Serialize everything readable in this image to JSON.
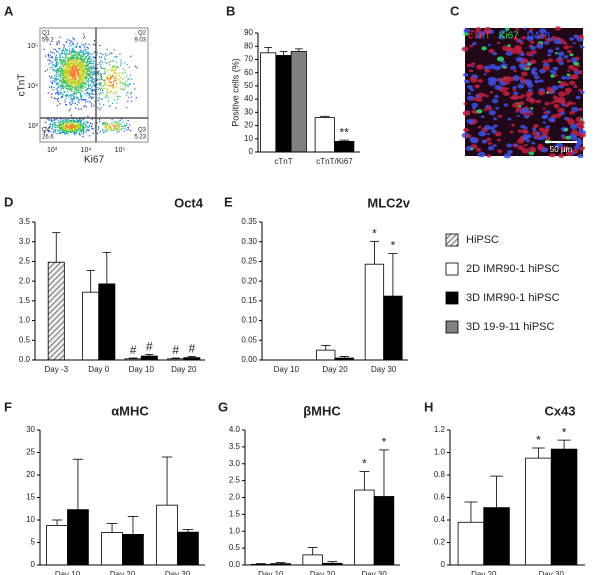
{
  "chart_data": [
    {
      "panel": "A",
      "type": "flow",
      "xlabel": "Ki67",
      "ylabel": "cTnT",
      "xtick_labels": [
        "10³",
        "10⁴",
        "10⁵"
      ],
      "ytick_labels": [
        "10⁵",
        "10⁴",
        "10³"
      ],
      "quadrants": [
        {
          "name": "Q1",
          "value": 59.2
        },
        {
          "name": "Q2",
          "value": 9.03
        },
        {
          "name": "Q3",
          "value": 5.23
        },
        {
          "name": "Q4",
          "value": 26.6
        }
      ]
    },
    {
      "panel": "B",
      "type": "bar",
      "ylabel": "Positive cells (%)",
      "categories": [
        "cTnT",
        "cTnT/Ki67"
      ],
      "ylim": [
        0,
        90
      ],
      "yticks": [
        0,
        10,
        20,
        30,
        40,
        50,
        60,
        70,
        80,
        90
      ],
      "series": [
        {
          "color": "#ffffff",
          "values": [
            75,
            26
          ],
          "errors": [
            4,
            1
          ],
          "annotations": [
            null,
            null
          ]
        },
        {
          "color": "#000000",
          "values": [
            73,
            8
          ],
          "errors": [
            3,
            1
          ],
          "annotations": [
            null,
            "**"
          ]
        },
        {
          "color": "#808080",
          "values": [
            76,
            null
          ],
          "errors": [
            2,
            null
          ],
          "annotations": [
            null,
            null
          ]
        }
      ]
    },
    {
      "panel": "C",
      "type": "image",
      "labels": [
        "cTnT",
        "Ki67",
        "DAPI"
      ],
      "label_colors": [
        "#ff3030",
        "#30e050",
        "#4060ff"
      ],
      "scale_bar": "50 µm"
    },
    {
      "panel": "D",
      "type": "bar",
      "title": "Oct4",
      "categories": [
        "Day -3",
        "Day 0",
        "Day 10",
        "Day 20"
      ],
      "ylim": [
        0,
        3.5
      ],
      "yticks": [
        {
          "value": 0,
          "label": "0.0"
        },
        0.5,
        {
          "value": 1,
          "label": "1.0"
        },
        1.5,
        {
          "value": 2,
          "label": "2.0"
        },
        2.5,
        {
          "value": 3,
          "label": "3.0"
        },
        3.5
      ],
      "series": [
        {
          "color": "#bbbbbb",
          "pattern": "hatch",
          "values": [
            2.48,
            null,
            null,
            null
          ],
          "errors": [
            0.75,
            null,
            null,
            null
          ],
          "annotations": [
            null,
            null,
            null,
            null
          ]
        },
        {
          "color": "#ffffff",
          "values": [
            null,
            1.72,
            0.03,
            0.03
          ],
          "errors": [
            null,
            0.55,
            0.02,
            0.02
          ],
          "annotations": [
            null,
            null,
            "#",
            "#"
          ]
        },
        {
          "color": "#000000",
          "values": [
            null,
            1.93,
            0.1,
            0.06
          ],
          "errors": [
            null,
            0.8,
            0.04,
            0.03
          ],
          "annotations": [
            null,
            null,
            "#",
            "#"
          ]
        }
      ]
    },
    {
      "panel": "E",
      "type": "bar",
      "title": "MLC2v",
      "categories": [
        "Day 10",
        "Day 20",
        "Day 30"
      ],
      "ylim": [
        0,
        0.35
      ],
      "yticks": [
        {
          "value": 0,
          "label": "0.00"
        },
        0.05,
        {
          "value": 0.1,
          "label": "0.10"
        },
        0.15,
        {
          "value": 0.2,
          "label": "0.20"
        },
        0.25,
        {
          "value": 0.3,
          "label": "0.30"
        },
        0.35
      ],
      "series": [
        {
          "color": "#ffffff",
          "values": [
            0,
            0.025,
            0.243
          ],
          "errors": [
            0,
            0.012,
            0.058
          ],
          "annotations": [
            null,
            null,
            "*"
          ]
        },
        {
          "color": "#000000",
          "values": [
            0,
            0.005,
            0.162
          ],
          "errors": [
            0,
            0.004,
            0.108
          ],
          "annotations": [
            null,
            null,
            "*"
          ]
        }
      ]
    },
    {
      "panel": "F",
      "type": "bar",
      "title": "αMHC",
      "categories": [
        "Day 10",
        "Day 20",
        "Day 30"
      ],
      "ylim": [
        0,
        30
      ],
      "yticks": [
        0,
        5,
        10,
        15,
        20,
        25,
        30
      ],
      "series": [
        {
          "color": "#ffffff",
          "values": [
            8.8,
            7.2,
            13.3
          ],
          "errors": [
            1.2,
            2.0,
            10.7
          ],
          "annotations": [
            null,
            null,
            null
          ]
        },
        {
          "color": "#000000",
          "values": [
            12.3,
            6.8,
            7.3
          ],
          "errors": [
            11.2,
            4.0,
            0.6
          ],
          "annotations": [
            null,
            null,
            null
          ]
        }
      ]
    },
    {
      "panel": "G",
      "type": "bar",
      "title": "βMHC",
      "categories": [
        "Day 10",
        "Day 20",
        "Day 30"
      ],
      "ylim": [
        0,
        4
      ],
      "yticks": [
        {
          "value": 0,
          "label": "0.0"
        },
        0.5,
        {
          "value": 1,
          "label": "1.0"
        },
        1.5,
        {
          "value": 2,
          "label": "2.0"
        },
        2.5,
        {
          "value": 3,
          "label": "3.0"
        },
        3.5,
        {
          "value": 4,
          "label": "4.0"
        }
      ],
      "series": [
        {
          "color": "#ffffff",
          "values": [
            0.02,
            0.3,
            2.22
          ],
          "errors": [
            0.02,
            0.22,
            0.55
          ],
          "annotations": [
            null,
            null,
            "*"
          ]
        },
        {
          "color": "#000000",
          "values": [
            0.04,
            0.05,
            2.03
          ],
          "errors": [
            0.03,
            0.05,
            1.38
          ],
          "annotations": [
            null,
            null,
            "*"
          ]
        }
      ]
    },
    {
      "panel": "H",
      "type": "bar",
      "title": "Cx43",
      "categories": [
        "Day 20",
        "Day 30"
      ],
      "ylim": [
        0,
        1.2
      ],
      "yticks": [
        0,
        0.2,
        0.4,
        0.6,
        0.8,
        {
          "value": 1,
          "label": "1.0"
        },
        1.2
      ],
      "series": [
        {
          "color": "#ffffff",
          "values": [
            0.38,
            0.95
          ],
          "errors": [
            0.18,
            0.09
          ],
          "annotations": [
            null,
            "*"
          ]
        },
        {
          "color": "#000000",
          "values": [
            0.51,
            1.03
          ],
          "errors": [
            0.28,
            0.08
          ],
          "annotations": [
            null,
            "*"
          ]
        }
      ]
    }
  ],
  "legend": {
    "items": [
      {
        "name": "HiPSC",
        "color": "#bbbbbb",
        "pattern": "hatch"
      },
      {
        "name": "2D IMR90-1 hiPSC",
        "color": "#ffffff"
      },
      {
        "name": "3D IMR90-1 hiPSC",
        "color": "#000000"
      },
      {
        "name": "3D 19-9-11 hiPSC",
        "color": "#808080"
      }
    ]
  }
}
